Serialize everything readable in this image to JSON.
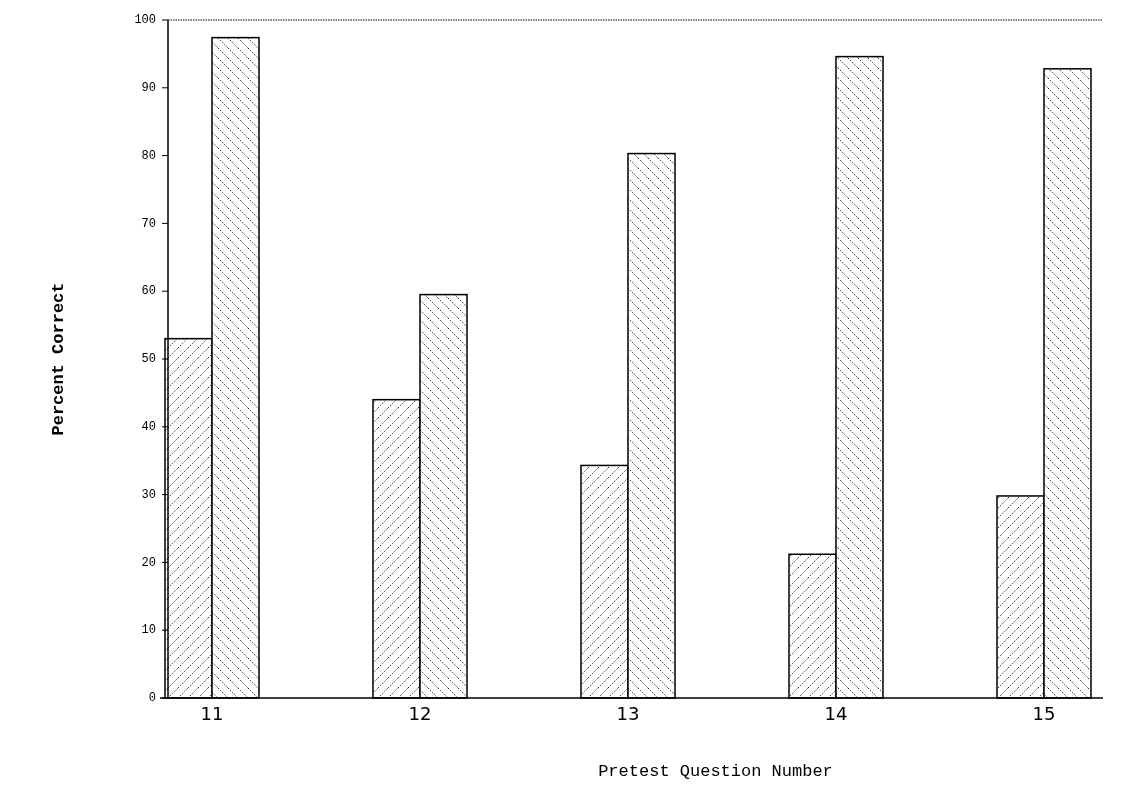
{
  "chart_data": {
    "type": "bar",
    "xlabel": "Pretest Question Number",
    "ylabel": "Percent Correct",
    "categories": [
      "11",
      "12",
      "13",
      "14",
      "15"
    ],
    "series": [
      {
        "color": "#000000",
        "values": [
          53,
          44,
          34.3,
          21.2,
          29.8
        ]
      },
      {
        "color": "#000000",
        "values": [
          97.4,
          59.5,
          80.3,
          94.6,
          92.8
        ]
      }
    ],
    "ylim": [
      0,
      100
    ],
    "yticks": [
      0,
      10,
      20,
      30,
      40,
      50,
      60,
      70,
      80,
      90,
      100
    ],
    "grid": false
  }
}
